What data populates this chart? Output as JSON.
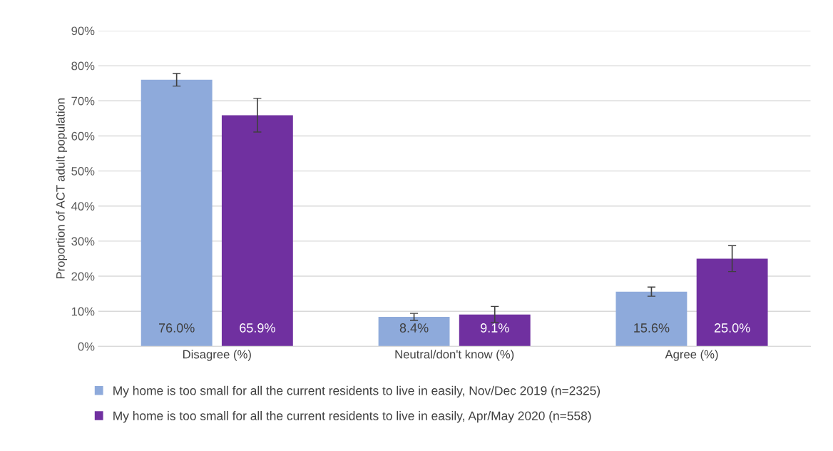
{
  "chart_data": {
    "type": "bar",
    "ylabel": "Proportion of ACT adult population",
    "categories": [
      "Disagree (%)",
      "Neutral/don't know (%)",
      "Agree (%)"
    ],
    "series": [
      {
        "name": "My home is too small for all the current residents to live in easily, Nov/Dec 2019 (n=2325)",
        "color": "#8eaadb",
        "values": [
          76.0,
          8.4,
          15.6
        ],
        "errors": [
          1.8,
          1.0,
          1.3
        ],
        "value_labels": [
          "76.0%",
          "8.4%",
          "15.6%"
        ]
      },
      {
        "name": "My home is too small for all the current residents to live in easily, Apr/May 2020 (n=558)",
        "color": "#7030a0",
        "values": [
          65.9,
          9.1,
          25.0
        ],
        "errors": [
          4.8,
          2.3,
          3.7
        ],
        "value_labels": [
          "65.9%",
          "9.1%",
          "25.0%"
        ]
      }
    ],
    "ylim": [
      0,
      90
    ],
    "yticks": [
      {
        "value": 0,
        "label": "0%"
      },
      {
        "value": 10,
        "label": "10%"
      },
      {
        "value": 20,
        "label": "20%"
      },
      {
        "value": 30,
        "label": "30%"
      },
      {
        "value": 40,
        "label": "40%"
      },
      {
        "value": 50,
        "label": "50%"
      },
      {
        "value": 60,
        "label": "60%"
      },
      {
        "value": 70,
        "label": "70%"
      },
      {
        "value": 80,
        "label": "80%"
      },
      {
        "value": 90,
        "label": "90%"
      }
    ],
    "grid": "y",
    "legend": "bottom"
  }
}
